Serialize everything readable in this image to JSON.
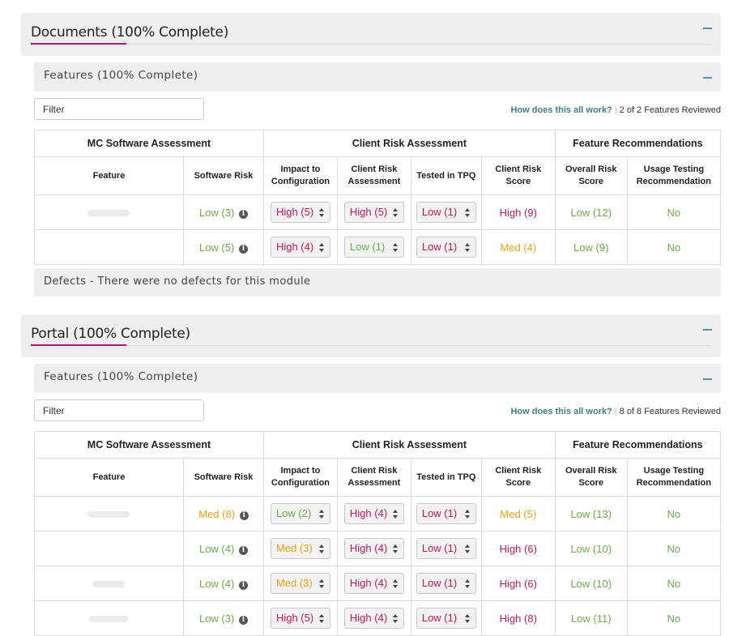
{
  "modules": [
    {
      "title": "Documents (100% Complete)",
      "features_title": "Features (100% Complete)",
      "filter_placeholder": "Filter",
      "help_link": "How does this all work?",
      "reviewed": "2 of 2 Features Reviewed",
      "group_headers": [
        "MC Software Assessment",
        "Client Risk Assessment",
        "Feature Recommendations"
      ],
      "columns": [
        "Feature",
        "Software Risk",
        "Impact to Configuration",
        "Client Risk Assessment",
        "Tested in TPQ",
        "Client Risk Score",
        "Overall Risk Score",
        "Usage Testing Recommendation"
      ],
      "rows": [
        {
          "software_risk": "Low (3)",
          "sr_level": "low",
          "impact": "High (5)",
          "impact_level": "high",
          "client_risk": "High (5)",
          "cr_level": "high",
          "tested": "Low (1)",
          "tested_level": "high",
          "score": "High (9)",
          "score_level": "high",
          "overall": "Low (12)",
          "overall_level": "low",
          "usage": "No"
        },
        {
          "software_risk": "Low (5)",
          "sr_level": "low",
          "impact": "High (4)",
          "impact_level": "high",
          "client_risk": "Low (1)",
          "cr_level": "low",
          "tested": "Low (1)",
          "tested_level": "high",
          "score": "Med (4)",
          "score_level": "med",
          "overall": "Low (9)",
          "overall_level": "low",
          "usage": "No"
        }
      ],
      "defects": "Defects - There were no defects for this module"
    },
    {
      "title": "Portal (100% Complete)",
      "features_title": "Features (100% Complete)",
      "filter_placeholder": "Filter",
      "help_link": "How does this all work?",
      "reviewed": "8 of 8 Features Reviewed",
      "group_headers": [
        "MC Software Assessment",
        "Client Risk Assessment",
        "Feature Recommendations"
      ],
      "columns": [
        "Feature",
        "Software Risk",
        "Impact to Configuration",
        "Client Risk Assessment",
        "Tested in TPQ",
        "Client Risk Score",
        "Overall Risk Score",
        "Usage Testing Recommendation"
      ],
      "rows": [
        {
          "software_risk": "Med (8)",
          "sr_level": "med",
          "impact": "Low (2)",
          "impact_level": "low",
          "client_risk": "High (4)",
          "cr_level": "high",
          "tested": "Low (1)",
          "tested_level": "high",
          "score": "Med (5)",
          "score_level": "med",
          "overall": "Low (13)",
          "overall_level": "low",
          "usage": "No"
        },
        {
          "software_risk": "Low (4)",
          "sr_level": "low",
          "impact": "Med (3)",
          "impact_level": "med",
          "client_risk": "High (4)",
          "cr_level": "high",
          "tested": "Low (1)",
          "tested_level": "high",
          "score": "High (6)",
          "score_level": "high",
          "overall": "Low (10)",
          "overall_level": "low",
          "usage": "No"
        },
        {
          "software_risk": "Low (4)",
          "sr_level": "low",
          "impact": "Med (3)",
          "impact_level": "med",
          "client_risk": "High (4)",
          "cr_level": "high",
          "tested": "Low (1)",
          "tested_level": "high",
          "score": "High (6)",
          "score_level": "high",
          "overall": "Low (10)",
          "overall_level": "low",
          "usage": "No"
        },
        {
          "software_risk": "Low (3)",
          "sr_level": "low",
          "impact": "High (5)",
          "impact_level": "high",
          "client_risk": "High (4)",
          "cr_level": "high",
          "tested": "Low (1)",
          "tested_level": "high",
          "score": "High (8)",
          "score_level": "high",
          "overall": "Low (11)",
          "overall_level": "low",
          "usage": "No"
        }
      ]
    }
  ],
  "colors": {
    "low": "#6aac48",
    "med": "#f0a010",
    "high": "#c2185b",
    "accent_underline": "#b0177a",
    "link": "#3d7d8f"
  },
  "icons": {
    "collapse": "minus-icon",
    "info": "info-circle-icon",
    "select_arrows": "select-arrows-icon"
  }
}
